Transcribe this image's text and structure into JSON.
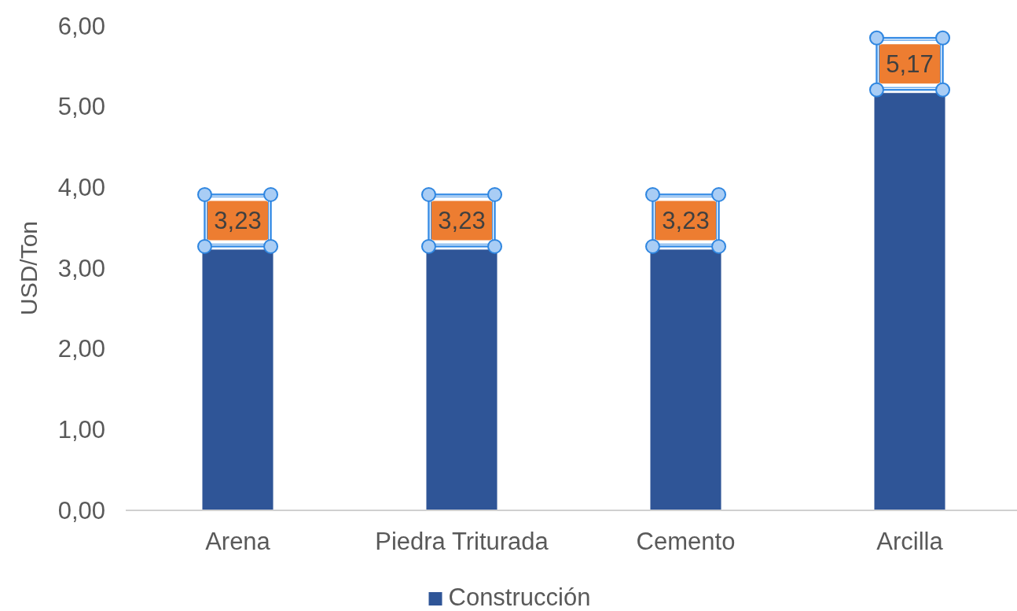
{
  "chart_data": {
    "type": "bar",
    "ylabel": "USD/Ton",
    "categories": [
      "Arena",
      "Piedra Triturada",
      "Cemento",
      "Arcilla"
    ],
    "series": [
      {
        "name": "Construcción",
        "color": "#2f5597",
        "values": [
          3.23,
          3.23,
          3.23,
          5.17
        ],
        "value_labels": [
          "3,23",
          "3,23",
          "3,23",
          "5,17"
        ]
      }
    ],
    "ylim": [
      0,
      6
    ],
    "yticks": [
      {
        "value": 0,
        "label": "0,00"
      },
      {
        "value": 1,
        "label": "1,00"
      },
      {
        "value": 2,
        "label": "2,00"
      },
      {
        "value": 3,
        "label": "3,00"
      },
      {
        "value": 4,
        "label": "4,00"
      },
      {
        "value": 5,
        "label": "5,00"
      },
      {
        "value": 6,
        "label": "6,00"
      }
    ],
    "legend": "bottom"
  }
}
